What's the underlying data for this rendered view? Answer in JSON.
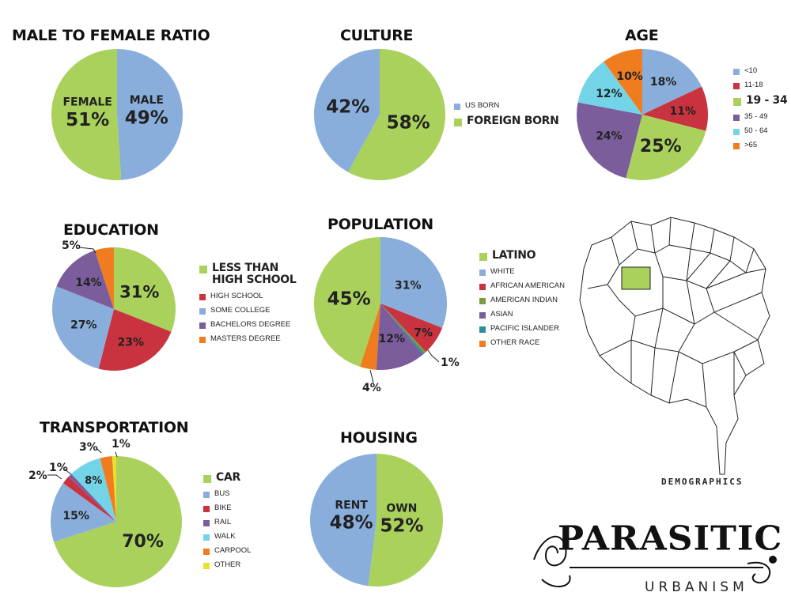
{
  "colors": {
    "green": "#a9d15c",
    "blue": "#89aedb",
    "red": "#c9333f",
    "purple": "#7b5d9c",
    "cyan": "#74d4e7",
    "orange": "#ef7d1f",
    "olive": "#7d9b3c",
    "teal": "#2b8f9b",
    "yellow": "#e8e22c"
  },
  "chart_data": [
    {
      "id": "gender",
      "type": "pie",
      "title": "MALE TO FEMALE RATIO",
      "slices": [
        {
          "name": "MALE",
          "value": 49,
          "label": "49%",
          "color": "#89aedb"
        },
        {
          "name": "FEMALE",
          "value": 51,
          "label": "51%",
          "color": "#a9d15c"
        }
      ]
    },
    {
      "id": "culture",
      "type": "pie",
      "title": "CULTURE",
      "legend": [
        {
          "name": "US BORN",
          "color": "#89aedb",
          "size": "small"
        },
        {
          "name": "FOREIGN BORN",
          "color": "#a9d15c",
          "size": "big"
        }
      ],
      "slices": [
        {
          "name": "FOREIGN BORN",
          "value": 58,
          "label": "58%",
          "color": "#a9d15c"
        },
        {
          "name": "US BORN",
          "value": 42,
          "label": "42%",
          "color": "#89aedb"
        }
      ]
    },
    {
      "id": "age",
      "type": "pie",
      "title": "AGE",
      "legend": [
        {
          "name": "<10",
          "color": "#89aedb",
          "size": "small"
        },
        {
          "name": "11-18",
          "color": "#c9333f",
          "size": "small"
        },
        {
          "name": "19 - 34",
          "color": "#a9d15c",
          "size": "big"
        },
        {
          "name": "35 - 49",
          "color": "#7b5d9c",
          "size": "small"
        },
        {
          "name": "50 - 64",
          "color": "#74d4e7",
          "size": "small"
        },
        {
          "name": ">65",
          "color": "#ef7d1f",
          "size": "small"
        }
      ],
      "slices": [
        {
          "name": "<10",
          "value": 18,
          "label": "18%",
          "color": "#89aedb"
        },
        {
          "name": "11-18",
          "value": 11,
          "label": "11%",
          "color": "#c9333f"
        },
        {
          "name": "19 - 34",
          "value": 25,
          "label": "25%",
          "color": "#a9d15c"
        },
        {
          "name": "35 - 49",
          "value": 24,
          "label": "24%",
          "color": "#7b5d9c"
        },
        {
          "name": "50 - 64",
          "value": 12,
          "label": "12%",
          "color": "#74d4e7"
        },
        {
          "name": ">65",
          "value": 10,
          "label": "10%",
          "color": "#ef7d1f"
        }
      ]
    },
    {
      "id": "education",
      "type": "pie",
      "title": "EDUCATION",
      "legend": [
        {
          "name": "LESS THAN HIGH SCHOOL",
          "color": "#a9d15c",
          "size": "big"
        },
        {
          "name": "HIGH SCHOOL",
          "color": "#c9333f",
          "size": "small"
        },
        {
          "name": "SOME COLLEGE",
          "color": "#89aedb",
          "size": "small"
        },
        {
          "name": "BACHELORS DEGREE",
          "color": "#7b5d9c",
          "size": "small"
        },
        {
          "name": "MASTERS DEGREE",
          "color": "#ef7d1f",
          "size": "small"
        }
      ],
      "slices": [
        {
          "name": "LESS THAN HIGH SCHOOL",
          "value": 31,
          "label": "31%",
          "color": "#a9d15c"
        },
        {
          "name": "HIGH SCHOOL",
          "value": 23,
          "label": "23%",
          "color": "#c9333f"
        },
        {
          "name": "SOME COLLEGE",
          "value": 27,
          "label": "27%",
          "color": "#89aedb"
        },
        {
          "name": "BACHELORS DEGREE",
          "value": 14,
          "label": "14%",
          "color": "#7b5d9c"
        },
        {
          "name": "MASTERS DEGREE",
          "value": 5,
          "label": "5%",
          "color": "#ef7d1f"
        }
      ]
    },
    {
      "id": "population",
      "type": "pie",
      "title": "POPULATION",
      "legend": [
        {
          "name": "LATINO",
          "color": "#a9d15c",
          "size": "big"
        },
        {
          "name": "WHITE",
          "color": "#89aedb",
          "size": "small"
        },
        {
          "name": "AFRICAN AMERICAN",
          "color": "#c9333f",
          "size": "small"
        },
        {
          "name": "AMERICAN INDIAN",
          "color": "#7d9b3c",
          "size": "small"
        },
        {
          "name": "ASIAN",
          "color": "#7b5d9c",
          "size": "small"
        },
        {
          "name": "PACIFIC ISLANDER",
          "color": "#2b8f9b",
          "size": "small"
        },
        {
          "name": "OTHER RACE",
          "color": "#ef7d1f",
          "size": "small"
        }
      ],
      "slices": [
        {
          "name": "WHITE",
          "value": 31,
          "label": "31%",
          "color": "#89aedb"
        },
        {
          "name": "AFRICAN AMERICAN",
          "value": 7,
          "label": "7%",
          "color": "#c9333f"
        },
        {
          "name": "AMERICAN INDIAN",
          "value": 0.5,
          "label": "",
          "color": "#7d9b3c"
        },
        {
          "name": "PACIFIC ISLANDER",
          "value": 0.5,
          "label": "1%",
          "color": "#2b8f9b"
        },
        {
          "name": "ASIAN",
          "value": 12,
          "label": "12%",
          "color": "#7b5d9c"
        },
        {
          "name": "OTHER RACE",
          "value": 4,
          "label": "4%",
          "color": "#ef7d1f"
        },
        {
          "name": "LATINO",
          "value": 45,
          "label": "45%",
          "color": "#a9d15c"
        }
      ]
    },
    {
      "id": "transportation",
      "type": "pie",
      "title": "TRANSPORTATION",
      "legend": [
        {
          "name": "CAR",
          "color": "#a9d15c",
          "size": "big"
        },
        {
          "name": "BUS",
          "color": "#89aedb",
          "size": "small"
        },
        {
          "name": "BIKE",
          "color": "#c9333f",
          "size": "small"
        },
        {
          "name": "RAIL",
          "color": "#7b5d9c",
          "size": "small"
        },
        {
          "name": "WALK",
          "color": "#74d4e7",
          "size": "small"
        },
        {
          "name": "CARPOOL",
          "color": "#ef7d1f",
          "size": "small"
        },
        {
          "name": "OTHER",
          "color": "#e8e22c",
          "size": "small"
        }
      ],
      "slices": [
        {
          "name": "CAR",
          "value": 70,
          "label": "70%",
          "color": "#a9d15c"
        },
        {
          "name": "BUS",
          "value": 15,
          "label": "15%",
          "color": "#89aedb"
        },
        {
          "name": "BIKE",
          "value": 2,
          "label": "2%",
          "color": "#c9333f"
        },
        {
          "name": "RAIL",
          "value": 1,
          "label": "1%",
          "color": "#7b5d9c"
        },
        {
          "name": "WALK",
          "value": 8,
          "label": "8%",
          "color": "#74d4e7"
        },
        {
          "name": "CARPOOL",
          "value": 3,
          "label": "3%",
          "color": "#ef7d1f"
        },
        {
          "name": "OTHER",
          "value": 1,
          "label": "1%",
          "color": "#e8e22c"
        }
      ]
    },
    {
      "id": "housing",
      "type": "pie",
      "title": "HOUSING",
      "slices": [
        {
          "name": "OWN",
          "value": 52,
          "label": "52%",
          "color": "#a9d15c"
        },
        {
          "name": "RENT",
          "value": 48,
          "label": "48%",
          "color": "#89aedb"
        }
      ]
    }
  ],
  "map": {
    "label": "DEMOGRAPHICS",
    "highlight_color": "#a9d15c",
    "icon": "district-map-icon"
  },
  "logo": {
    "text": "PARASITIC",
    "subtext": "URBANISM"
  }
}
